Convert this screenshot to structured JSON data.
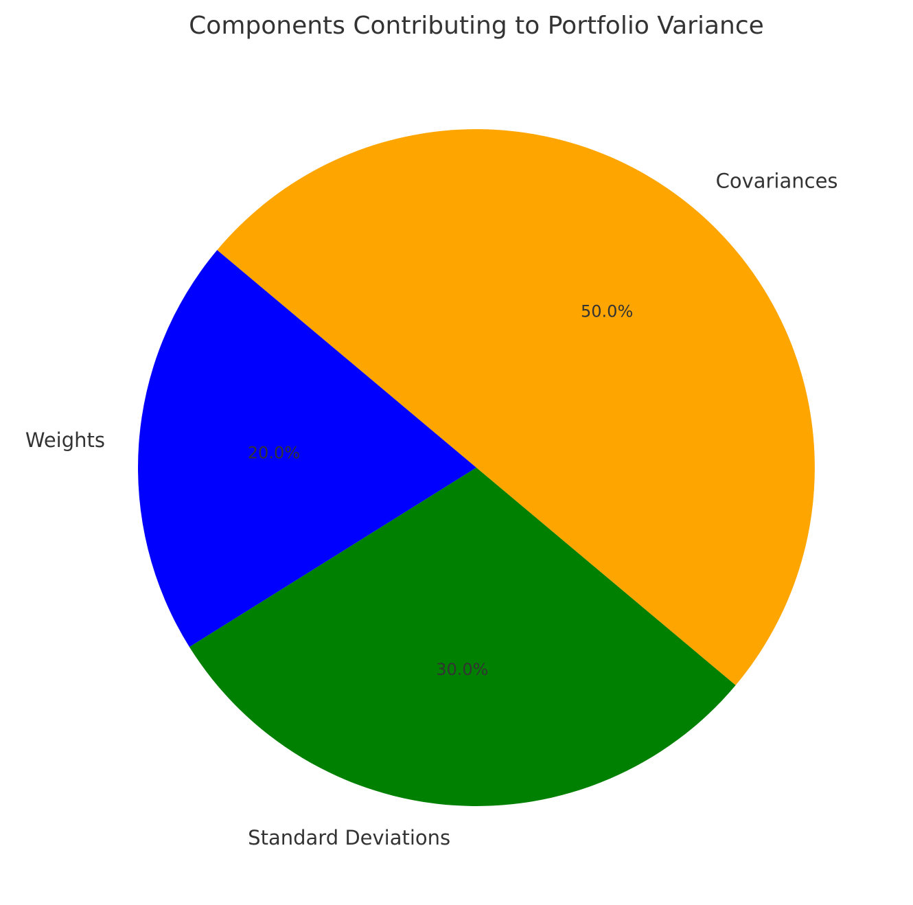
{
  "chart_data": {
    "type": "pie",
    "title": "Components Contributing to Portfolio Variance",
    "categories": [
      "Weights",
      "Standard Deviations",
      "Covariances"
    ],
    "values": [
      20,
      30,
      50
    ],
    "percent_labels": [
      "20.0%",
      "30.0%",
      "50.0%"
    ],
    "colors": [
      "#0000ff",
      "#008000",
      "#ffa500"
    ],
    "start_angle_deg": 140,
    "direction": "counterclockwise",
    "legend": "none"
  }
}
